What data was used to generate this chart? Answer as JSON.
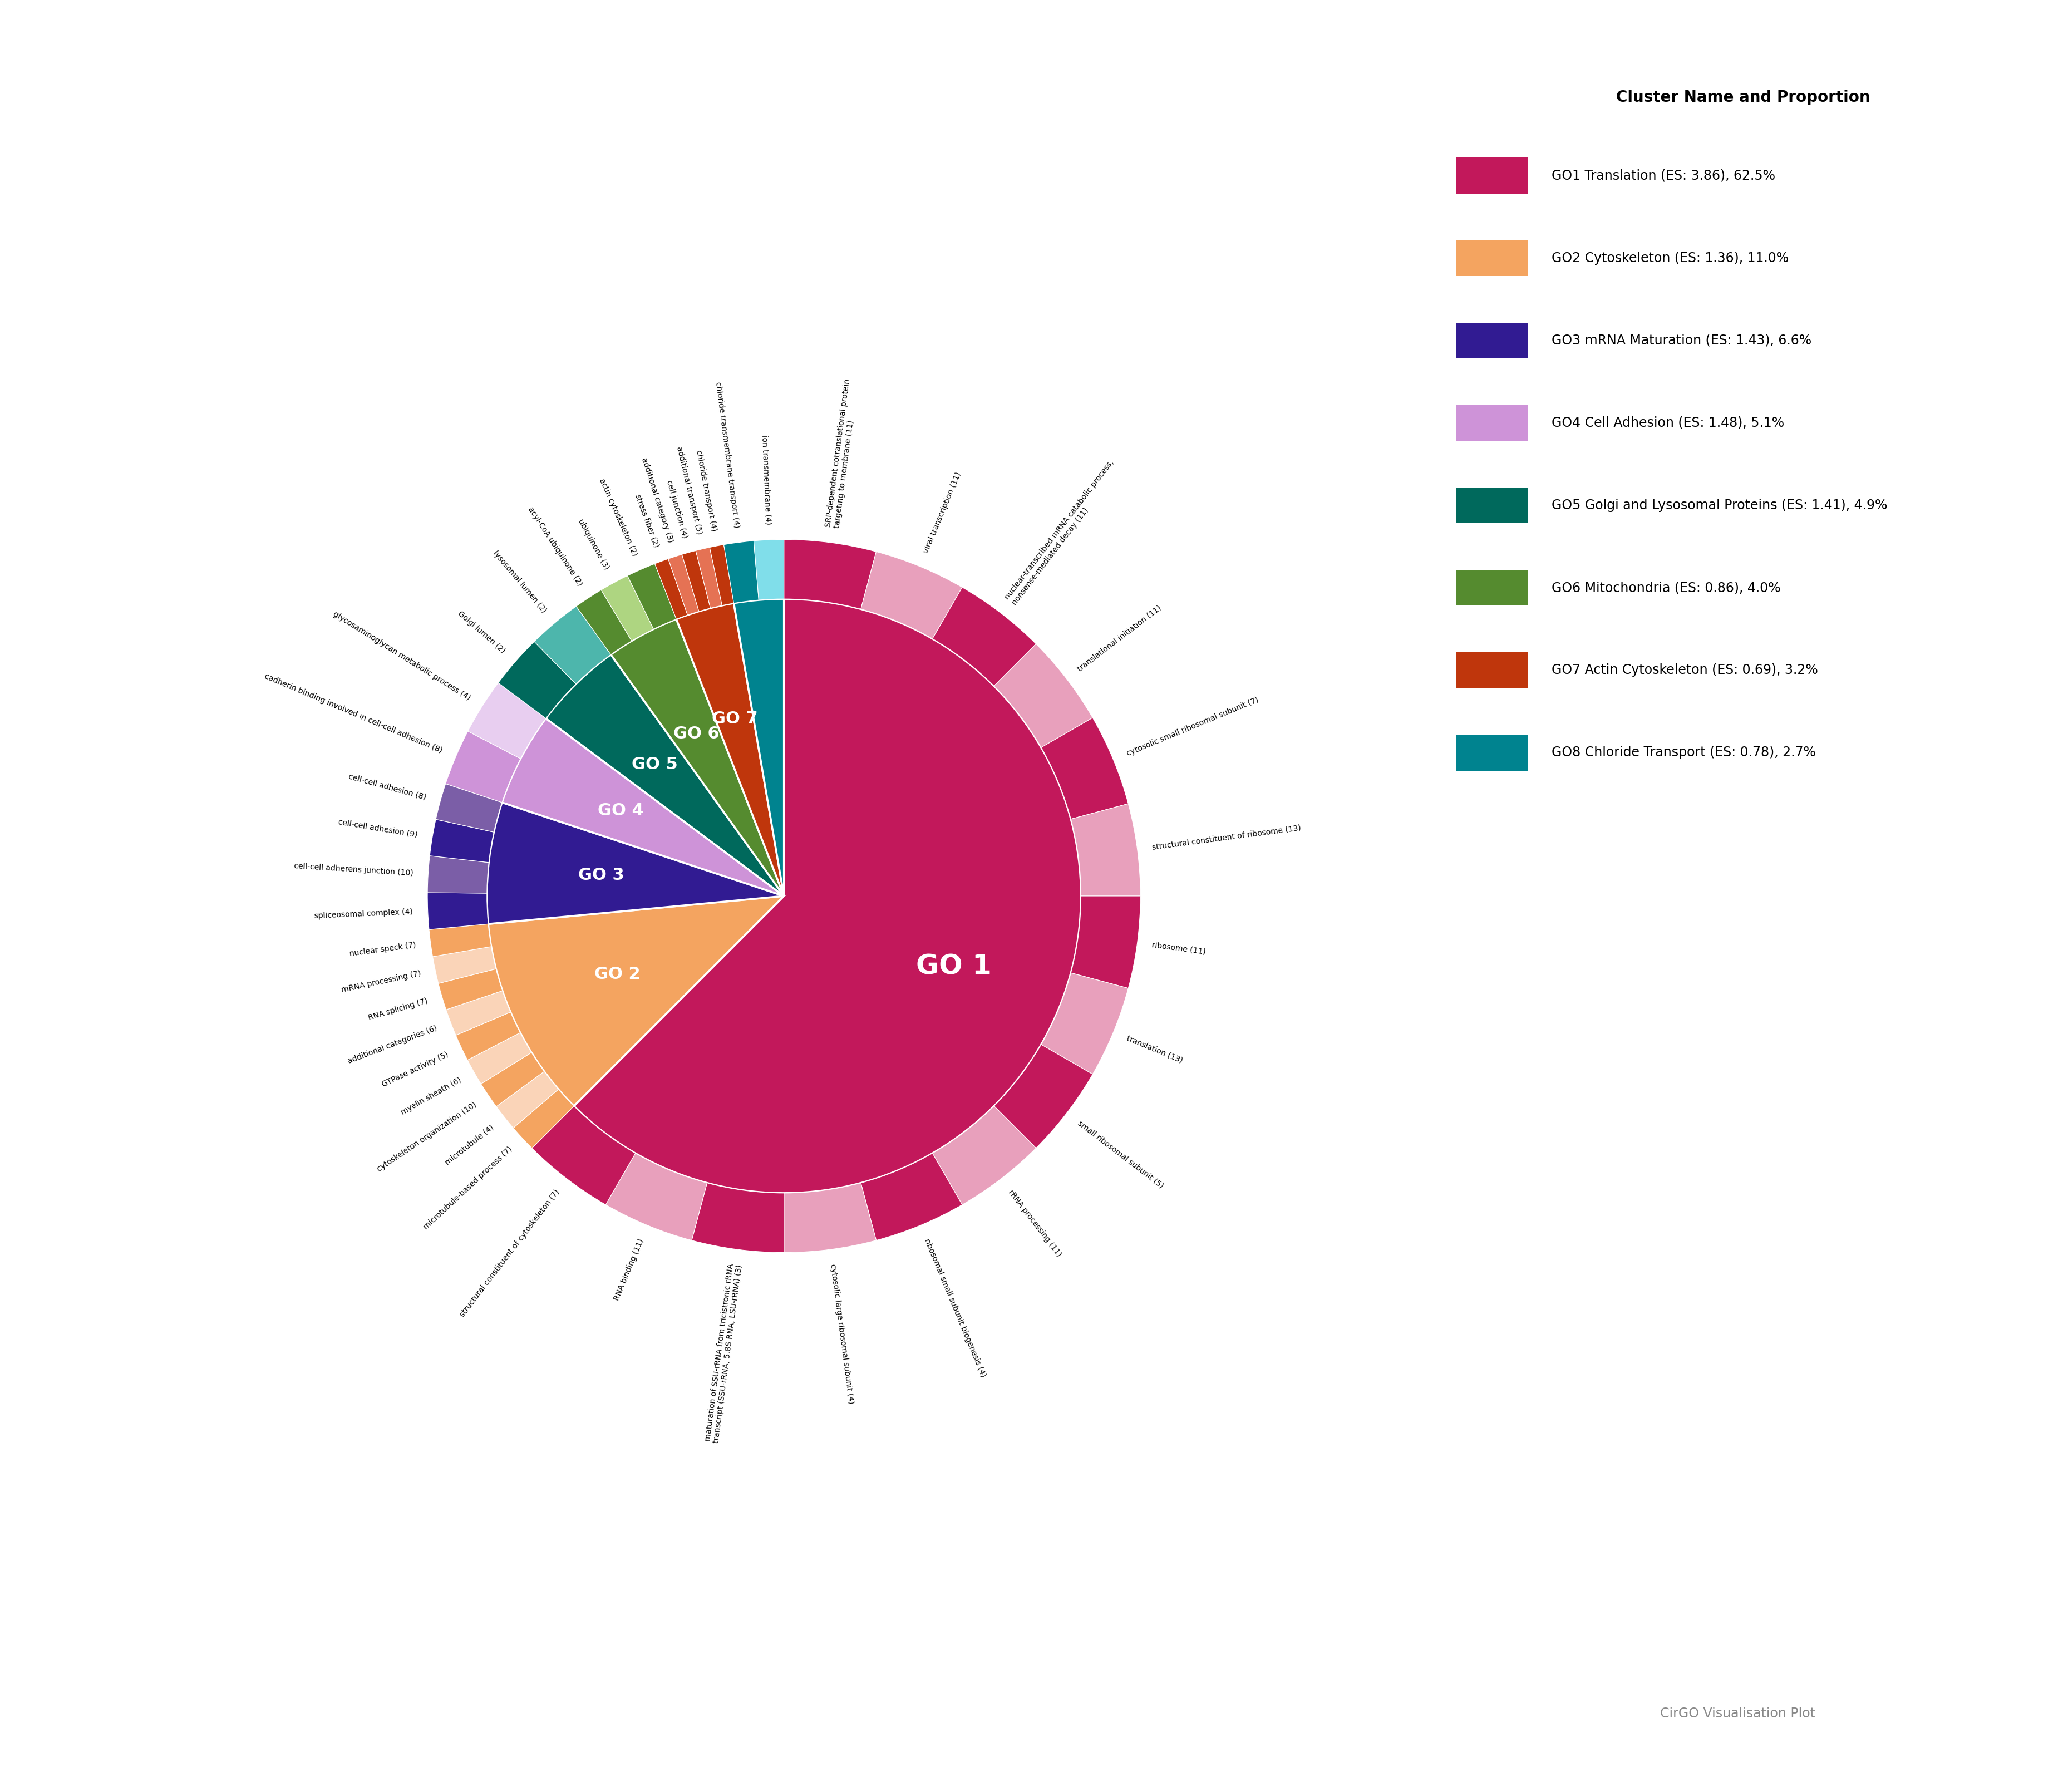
{
  "legend_title": "Cluster Name and Proportion",
  "cirgo_label": "CirGO Visualisation Plot",
  "clusters": [
    {
      "name": "GO 1",
      "label": "GO1 Translation (ES: 3.86), 62.5%",
      "proportion": 62.5,
      "color": "#C2185B",
      "alt_color": "#E8A0BC",
      "terms": [
        {
          "name": "SRP-dependent cotranslational protein\ntargeting to membrane",
          "count": 11
        },
        {
          "name": "viral transcription",
          "count": 11
        },
        {
          "name": "nuclear-transcribed mRNA catabolic process,\nnonsense-mediated decay",
          "count": 11
        },
        {
          "name": "translational initiation",
          "count": 11
        },
        {
          "name": "cytosolic small ribosomal subunit",
          "count": 7
        },
        {
          "name": "structural constituent of ribosome",
          "count": 13
        },
        {
          "name": "ribosome",
          "count": 11
        },
        {
          "name": "translation",
          "count": 13
        },
        {
          "name": "small ribosomal subunit",
          "count": 5
        },
        {
          "name": "rRNA processing",
          "count": 11
        },
        {
          "name": "ribosomal small subunit biogenesis",
          "count": 4
        },
        {
          "name": "cytosolic large ribosomal subunit",
          "count": 4
        },
        {
          "name": "maturation of SSU-rRNA from tricistronic rRNA\ntranscript (SSU-rRNA, 5.8S RNA, LSU-rRNA)",
          "count": 3
        },
        {
          "name": "RNA binding",
          "count": 11
        },
        {
          "name": "structural constituent of cytoskeleton",
          "count": 7
        }
      ]
    },
    {
      "name": "GO 2",
      "label": "GO2 Cytoskeleton (ES: 1.36), 11.0%",
      "proportion": 11.0,
      "color": "#F4A460",
      "alt_color": "#FAD4B8",
      "terms": [
        {
          "name": "microtubule-based process",
          "count": 7
        },
        {
          "name": "microtubule",
          "count": 4
        },
        {
          "name": "cytoskeleton organization",
          "count": 10
        },
        {
          "name": "myelin sheath",
          "count": 6
        },
        {
          "name": "GTPase activity",
          "count": 5
        },
        {
          "name": "additional categories",
          "count": 6
        },
        {
          "name": "RNA splicing",
          "count": 7
        },
        {
          "name": "mRNA processing",
          "count": 7
        },
        {
          "name": "nuclear speck",
          "count": 7
        }
      ]
    },
    {
      "name": "GO 3",
      "label": "GO3 mRNA Maturation (ES: 1.43), 6.6%",
      "proportion": 6.6,
      "color": "#311B92",
      "alt_color": "#7B5EA7",
      "terms": [
        {
          "name": "spliceosomal complex",
          "count": 4
        },
        {
          "name": "cell-cell adherens junction",
          "count": 10
        },
        {
          "name": "cell-cell adhesion",
          "count": 9
        },
        {
          "name": "cell-cell adhesion",
          "count": 8
        }
      ]
    },
    {
      "name": "GO 4",
      "label": "GO4 Cell Adhesion (ES: 1.48), 5.1%",
      "proportion": 5.1,
      "color": "#CE93D8",
      "alt_color": "#E8CEF0",
      "terms": [
        {
          "name": "cadherin binding involved in cell-cell adhesion",
          "count": 8
        },
        {
          "name": "glycosaminoglycan metabolic process",
          "count": 4
        }
      ]
    },
    {
      "name": "GO 5",
      "label": "GO5 Golgi and Lysosomal Proteins (ES: 1.41), 4.9%",
      "proportion": 4.9,
      "color": "#00695C",
      "alt_color": "#4DB6AC",
      "terms": [
        {
          "name": "Golgi lumen",
          "count": 2
        },
        {
          "name": "lysosomal lumen",
          "count": 2
        }
      ]
    },
    {
      "name": "GO 6",
      "label": "GO6 Mitochondria (ES: 0.86), 4.0%",
      "proportion": 4.0,
      "color": "#558B2F",
      "alt_color": "#AED581",
      "terms": [
        {
          "name": "acyl-CoA ubiquinone",
          "count": 2
        },
        {
          "name": "ubiquinone",
          "count": 3
        },
        {
          "name": "actin cytoskeleton",
          "count": 2
        }
      ]
    },
    {
      "name": "GO 7",
      "label": "GO7 Actin Cytoskeleton (ES: 0.69), 3.2%",
      "proportion": 3.2,
      "color": "#BF360C",
      "alt_color": "#E57254",
      "terms": [
        {
          "name": "stress fiber",
          "count": 2
        },
        {
          "name": "additional category",
          "count": 3
        },
        {
          "name": "cell junction",
          "count": 4
        },
        {
          "name": "additional transport",
          "count": 5
        },
        {
          "name": "chloride transport",
          "count": 4
        }
      ]
    },
    {
      "name": "GO 8",
      "label": "GO8 Chloride Transport (ES: 0.78), 2.7%",
      "proportion": 2.7,
      "color": "#00838F",
      "alt_color": "#80DEEA",
      "terms": [
        {
          "name": "chloride transmembrane transport",
          "count": 4
        },
        {
          "name": "ion transmembrane",
          "count": 4
        }
      ]
    }
  ],
  "legend_colors": [
    "#C2185B",
    "#F4A460",
    "#311B92",
    "#CE93D8",
    "#00695C",
    "#558B2F",
    "#BF360C",
    "#00838F"
  ]
}
